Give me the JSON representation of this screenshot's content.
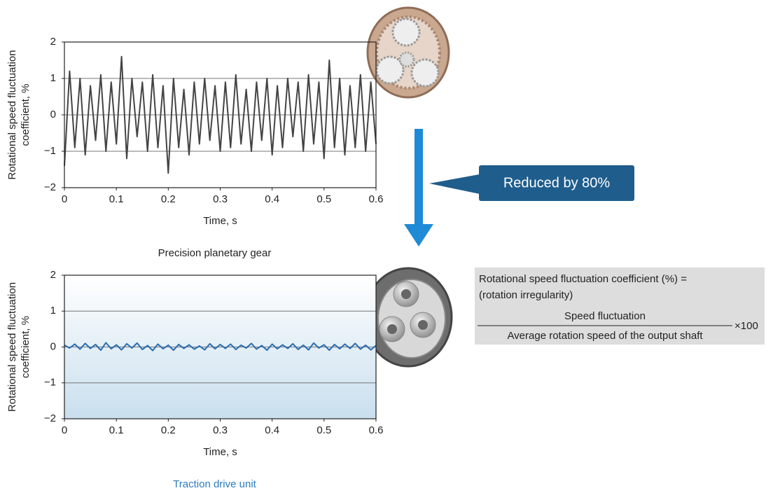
{
  "chart_data": [
    {
      "type": "line",
      "title": "Precision planetary gear",
      "xlabel": "Time, s",
      "ylabel": [
        "Rotational speed fluctuation",
        "coefficient, %"
      ],
      "x": [
        0,
        0.01,
        0.02,
        0.03,
        0.04,
        0.05,
        0.06,
        0.07,
        0.08,
        0.09,
        0.1,
        0.11,
        0.12,
        0.13,
        0.14,
        0.15,
        0.16,
        0.17,
        0.18,
        0.19,
        0.2,
        0.21,
        0.22,
        0.23,
        0.24,
        0.25,
        0.26,
        0.27,
        0.28,
        0.29,
        0.3,
        0.31,
        0.32,
        0.33,
        0.34,
        0.35,
        0.36,
        0.37,
        0.38,
        0.39,
        0.4,
        0.41,
        0.42,
        0.43,
        0.44,
        0.45,
        0.46,
        0.47,
        0.48,
        0.49,
        0.5,
        0.51,
        0.52,
        0.53,
        0.54,
        0.55,
        0.56,
        0.57,
        0.58,
        0.59,
        0.6
      ],
      "values": [
        -1.4,
        1.2,
        -0.9,
        1.0,
        -1.1,
        0.8,
        -0.7,
        1.1,
        -1.0,
        0.9,
        -0.8,
        1.6,
        -1.2,
        1.0,
        -0.6,
        0.9,
        -1.0,
        1.1,
        -0.9,
        0.8,
        -1.6,
        1.0,
        -0.9,
        0.7,
        -1.1,
        0.9,
        -0.8,
        1.0,
        -0.7,
        0.8,
        -1.0,
        0.9,
        -0.9,
        1.1,
        -0.8,
        0.7,
        -1.0,
        0.9,
        -0.7,
        1.0,
        -1.1,
        0.8,
        -0.9,
        1.0,
        -0.6,
        0.9,
        -1.0,
        1.1,
        -0.8,
        0.9,
        -1.2,
        1.5,
        -0.9,
        1.0,
        -1.1,
        0.8,
        -0.9,
        1.1,
        -1.0,
        0.9,
        -0.8
      ],
      "color": "#444444",
      "title_color": "#222222",
      "xlim": [
        0,
        0.6
      ],
      "xticks": [
        0,
        0.1,
        0.2,
        0.3,
        0.4,
        0.5,
        0.6
      ],
      "ylim": [
        -2,
        2
      ],
      "yticks": [
        {
          "value": -2,
          "label": "−2"
        },
        {
          "value": -1,
          "label": "−1"
        },
        0,
        1,
        2
      ],
      "grid": true
    },
    {
      "type": "line",
      "title": "Traction drive unit",
      "xlabel": "Time, s",
      "ylabel": [
        "Rotational speed fluctuation",
        "coefficient, %"
      ],
      "x": [
        0,
        0.01,
        0.02,
        0.03,
        0.04,
        0.05,
        0.06,
        0.07,
        0.08,
        0.09,
        0.1,
        0.11,
        0.12,
        0.13,
        0.14,
        0.15,
        0.16,
        0.17,
        0.18,
        0.19,
        0.2,
        0.21,
        0.22,
        0.23,
        0.24,
        0.25,
        0.26,
        0.27,
        0.28,
        0.29,
        0.3,
        0.31,
        0.32,
        0.33,
        0.34,
        0.35,
        0.36,
        0.37,
        0.38,
        0.39,
        0.4,
        0.41,
        0.42,
        0.43,
        0.44,
        0.45,
        0.46,
        0.47,
        0.48,
        0.49,
        0.5,
        0.51,
        0.52,
        0.53,
        0.54,
        0.55,
        0.56,
        0.57,
        0.58,
        0.59,
        0.6
      ],
      "values": [
        0.05,
        -0.03,
        0.08,
        -0.06,
        0.1,
        -0.04,
        0.07,
        -0.09,
        0.12,
        -0.05,
        0.06,
        -0.08,
        0.09,
        -0.03,
        0.11,
        -0.07,
        0.04,
        -0.1,
        0.08,
        -0.05,
        0.05,
        -0.09,
        0.07,
        -0.04,
        0.06,
        -0.06,
        0.03,
        -0.08,
        0.09,
        -0.05,
        0.07,
        -0.04,
        0.08,
        -0.07,
        0.05,
        -0.03,
        0.1,
        -0.06,
        0.04,
        -0.09,
        0.08,
        -0.05,
        0.06,
        -0.04,
        0.09,
        -0.07,
        0.05,
        -0.08,
        0.11,
        -0.03,
        0.06,
        -0.09,
        0.07,
        -0.05,
        0.08,
        -0.04,
        0.1,
        -0.06,
        0.05,
        -0.08,
        0.04
      ],
      "color": "#2a6db0",
      "title_color": "#2a7bc0",
      "background": "#c9dfee",
      "xlim": [
        0,
        0.6
      ],
      "xticks": [
        0,
        0.1,
        0.2,
        0.3,
        0.4,
        0.5,
        0.6
      ],
      "ylim": [
        -2,
        2
      ],
      "yticks": [
        {
          "value": -2,
          "label": "−2"
        },
        {
          "value": -1,
          "label": "−1"
        },
        0,
        1,
        2
      ],
      "grid": true
    }
  ],
  "callout": "Reduced by 80%",
  "formula": {
    "lines": [
      "Rotational speed fluctuation coefficient (%) =",
      "(rotation irregularity)"
    ],
    "numerator": "Speed fluctuation",
    "denominator": "Average rotation speed of the output shaft",
    "factor": "×100"
  }
}
